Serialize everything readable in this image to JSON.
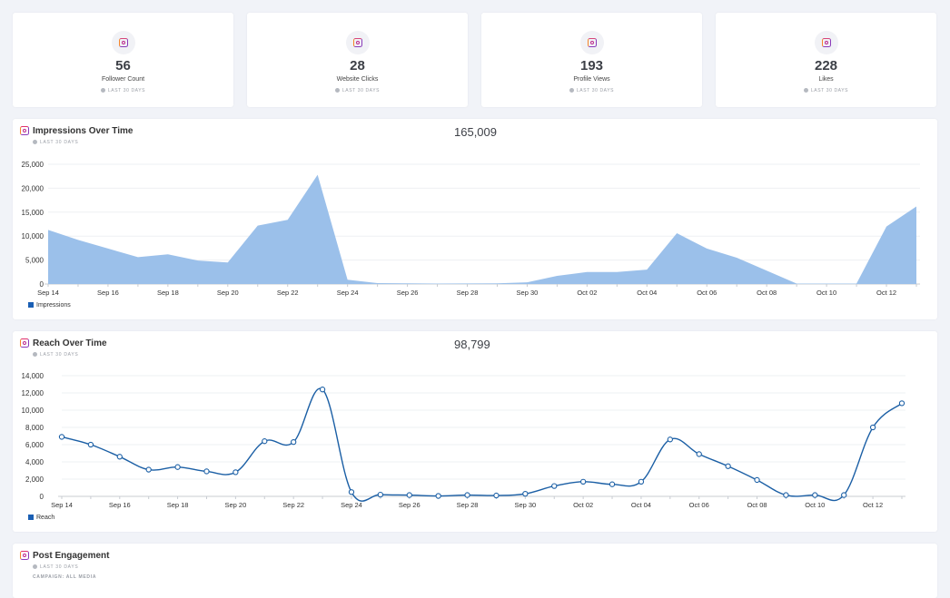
{
  "kpis": [
    {
      "value": "56",
      "label": "Follower Count",
      "sub": "LAST 30 DAYS",
      "icon": "instagram-icon"
    },
    {
      "value": "28",
      "label": "Website Clicks",
      "sub": "LAST 30 DAYS",
      "icon": "instagram-icon"
    },
    {
      "value": "193",
      "label": "Profile Views",
      "sub": "LAST 30 DAYS",
      "icon": "instagram-icon"
    },
    {
      "value": "228",
      "label": "Likes",
      "sub": "LAST 30 DAYS",
      "icon": "instagram-icon"
    }
  ],
  "impressions": {
    "title": "Impressions Over Time",
    "sub": "LAST 30 DAYS",
    "total": "165,009",
    "legend": "Impressions"
  },
  "reach": {
    "title": "Reach Over Time",
    "sub": "LAST 30 DAYS",
    "total": "98,799",
    "legend": "Reach"
  },
  "engagement": {
    "title": "Post Engagement",
    "sub": "LAST 30 DAYS",
    "campaign": "CAMPAIGN: ALL MEDIA"
  },
  "colors": {
    "area_fill": "#9bc0ea",
    "line": "#1b5fa5",
    "legend_impressions": "#1a5fb4",
    "legend_reach": "#1a5fb4"
  },
  "chart_data": [
    {
      "type": "area",
      "title": "Impressions Over Time",
      "x": [
        "Sep 14",
        "Sep 15",
        "Sep 16",
        "Sep 17",
        "Sep 18",
        "Sep 19",
        "Sep 20",
        "Sep 21",
        "Sep 22",
        "Sep 23",
        "Sep 24",
        "Sep 25",
        "Sep 26",
        "Sep 27",
        "Sep 28",
        "Sep 29",
        "Sep 30",
        "Oct 01",
        "Oct 02",
        "Oct 03",
        "Oct 04",
        "Oct 05",
        "Oct 06",
        "Oct 07",
        "Oct 08",
        "Oct 09",
        "Oct 10",
        "Oct 11",
        "Oct 12",
        "Oct 13"
      ],
      "tick_labels": [
        "Sep 14",
        "Sep 16",
        "Sep 18",
        "Sep 20",
        "Sep 22",
        "Sep 24",
        "Sep 26",
        "Sep 28",
        "Sep 30",
        "Oct 02",
        "Oct 04",
        "Oct 06",
        "Oct 08",
        "Oct 10",
        "Oct 12"
      ],
      "series": [
        {
          "name": "Impressions",
          "values": [
            11300,
            9200,
            7400,
            5600,
            6200,
            4900,
            4500,
            12200,
            13400,
            22800,
            900,
            200,
            150,
            100,
            120,
            150,
            350,
            1700,
            2500,
            2500,
            3000,
            10600,
            7400,
            5500,
            2800,
            100,
            100,
            100,
            12000,
            16200
          ]
        }
      ],
      "yticks": [
        "0",
        "5,000",
        "10,000",
        "15,000",
        "20,000",
        "25,000"
      ],
      "ylim": [
        0,
        25000
      ],
      "grid": true,
      "legend": "bottom-left"
    },
    {
      "type": "line",
      "title": "Reach Over Time",
      "x": [
        "Sep 14",
        "Sep 15",
        "Sep 16",
        "Sep 17",
        "Sep 18",
        "Sep 19",
        "Sep 20",
        "Sep 21",
        "Sep 22",
        "Sep 23",
        "Sep 24",
        "Sep 25",
        "Sep 26",
        "Sep 27",
        "Sep 28",
        "Sep 29",
        "Sep 30",
        "Oct 01",
        "Oct 02",
        "Oct 03",
        "Oct 04",
        "Oct 05",
        "Oct 06",
        "Oct 07",
        "Oct 08",
        "Oct 09",
        "Oct 10",
        "Oct 11",
        "Oct 12",
        "Oct 13"
      ],
      "tick_labels": [
        "Sep 14",
        "Sep 16",
        "Sep 18",
        "Sep 20",
        "Sep 22",
        "Sep 24",
        "Sep 26",
        "Sep 28",
        "Sep 30",
        "Oct 02",
        "Oct 04",
        "Oct 06",
        "Oct 08",
        "Oct 10",
        "Oct 12"
      ],
      "series": [
        {
          "name": "Reach",
          "values": [
            6900,
            6000,
            4600,
            3100,
            3400,
            2900,
            2800,
            6400,
            6300,
            12400,
            500,
            200,
            150,
            50,
            150,
            100,
            300,
            1200,
            1700,
            1400,
            1700,
            6600,
            4900,
            3500,
            1900,
            150,
            150,
            150,
            8000,
            10800
          ]
        }
      ],
      "yticks": [
        "0",
        "2,000",
        "4,000",
        "6,000",
        "8,000",
        "10,000",
        "12,000",
        "14,000"
      ],
      "ylim": [
        0,
        14000
      ],
      "grid": true,
      "legend": "bottom-left"
    }
  ]
}
